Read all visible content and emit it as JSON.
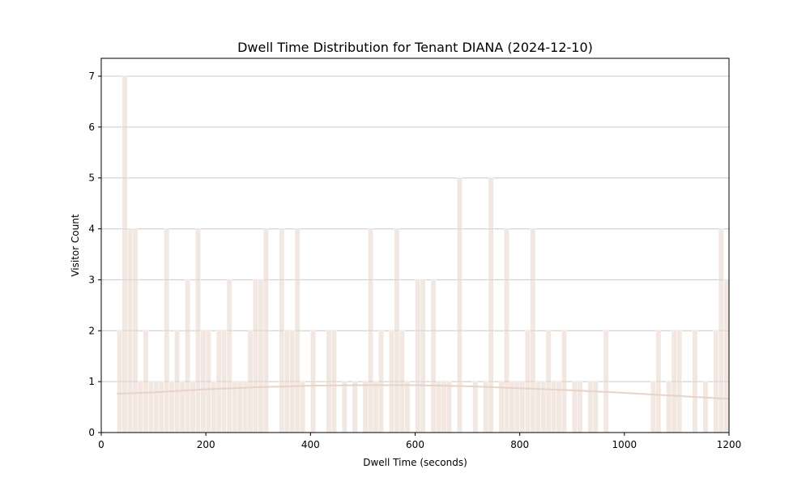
{
  "chart_data": {
    "type": "bar",
    "title": "Dwell Time Distribution for Tenant DIANA (2024-12-10)",
    "xlabel": "Dwell Time (seconds)",
    "ylabel": "Visitor Count",
    "xlim": [
      0,
      1200
    ],
    "ylim": [
      0,
      7.35
    ],
    "xticks": [
      0,
      200,
      400,
      600,
      800,
      1000,
      1200
    ],
    "yticks": [
      0,
      1,
      2,
      3,
      4,
      5,
      6,
      7
    ],
    "grid": "y",
    "bin_width": 10,
    "bar_color": "#e8d3c9",
    "curve_color": "#e8d3c9",
    "bins": [
      {
        "x": 30,
        "count": 2
      },
      {
        "x": 40,
        "count": 7
      },
      {
        "x": 50,
        "count": 4
      },
      {
        "x": 60,
        "count": 4
      },
      {
        "x": 70,
        "count": 1
      },
      {
        "x": 80,
        "count": 2
      },
      {
        "x": 90,
        "count": 1
      },
      {
        "x": 100,
        "count": 1
      },
      {
        "x": 110,
        "count": 1
      },
      {
        "x": 120,
        "count": 4
      },
      {
        "x": 130,
        "count": 1
      },
      {
        "x": 140,
        "count": 2
      },
      {
        "x": 150,
        "count": 1
      },
      {
        "x": 160,
        "count": 3
      },
      {
        "x": 170,
        "count": 1
      },
      {
        "x": 180,
        "count": 4
      },
      {
        "x": 190,
        "count": 2
      },
      {
        "x": 200,
        "count": 2
      },
      {
        "x": 210,
        "count": 1
      },
      {
        "x": 220,
        "count": 2
      },
      {
        "x": 230,
        "count": 2
      },
      {
        "x": 240,
        "count": 3
      },
      {
        "x": 250,
        "count": 1
      },
      {
        "x": 260,
        "count": 1
      },
      {
        "x": 270,
        "count": 1
      },
      {
        "x": 280,
        "count": 2
      },
      {
        "x": 290,
        "count": 3
      },
      {
        "x": 300,
        "count": 3
      },
      {
        "x": 310,
        "count": 4
      },
      {
        "x": 340,
        "count": 4
      },
      {
        "x": 350,
        "count": 2
      },
      {
        "x": 360,
        "count": 2
      },
      {
        "x": 370,
        "count": 4
      },
      {
        "x": 380,
        "count": 1
      },
      {
        "x": 400,
        "count": 2
      },
      {
        "x": 430,
        "count": 2
      },
      {
        "x": 440,
        "count": 2
      },
      {
        "x": 460,
        "count": 1
      },
      {
        "x": 480,
        "count": 1
      },
      {
        "x": 500,
        "count": 1
      },
      {
        "x": 510,
        "count": 4
      },
      {
        "x": 520,
        "count": 1
      },
      {
        "x": 530,
        "count": 2
      },
      {
        "x": 550,
        "count": 2
      },
      {
        "x": 560,
        "count": 4
      },
      {
        "x": 570,
        "count": 2
      },
      {
        "x": 580,
        "count": 1
      },
      {
        "x": 600,
        "count": 3
      },
      {
        "x": 610,
        "count": 3
      },
      {
        "x": 630,
        "count": 3
      },
      {
        "x": 640,
        "count": 1
      },
      {
        "x": 650,
        "count": 1
      },
      {
        "x": 660,
        "count": 1
      },
      {
        "x": 680,
        "count": 5
      },
      {
        "x": 710,
        "count": 1
      },
      {
        "x": 730,
        "count": 1
      },
      {
        "x": 740,
        "count": 5
      },
      {
        "x": 760,
        "count": 1
      },
      {
        "x": 770,
        "count": 4
      },
      {
        "x": 780,
        "count": 1
      },
      {
        "x": 790,
        "count": 1
      },
      {
        "x": 800,
        "count": 1
      },
      {
        "x": 810,
        "count": 2
      },
      {
        "x": 820,
        "count": 4
      },
      {
        "x": 830,
        "count": 1
      },
      {
        "x": 840,
        "count": 1
      },
      {
        "x": 850,
        "count": 2
      },
      {
        "x": 860,
        "count": 1
      },
      {
        "x": 870,
        "count": 1
      },
      {
        "x": 880,
        "count": 2
      },
      {
        "x": 900,
        "count": 1
      },
      {
        "x": 910,
        "count": 1
      },
      {
        "x": 930,
        "count": 1
      },
      {
        "x": 940,
        "count": 1
      },
      {
        "x": 960,
        "count": 2
      },
      {
        "x": 1050,
        "count": 1
      },
      {
        "x": 1060,
        "count": 2
      },
      {
        "x": 1080,
        "count": 1
      },
      {
        "x": 1090,
        "count": 2
      },
      {
        "x": 1100,
        "count": 2
      },
      {
        "x": 1130,
        "count": 2
      },
      {
        "x": 1150,
        "count": 1
      },
      {
        "x": 1170,
        "count": 2
      },
      {
        "x": 1180,
        "count": 4
      },
      {
        "x": 1190,
        "count": 3
      }
    ],
    "density_curve": {
      "x": [
        30,
        100,
        200,
        300,
        400,
        500,
        600,
        700,
        800,
        900,
        1000,
        1100,
        1200
      ],
      "y": [
        0.76,
        0.79,
        0.85,
        0.89,
        0.92,
        0.93,
        0.93,
        0.91,
        0.87,
        0.83,
        0.78,
        0.72,
        0.66
      ]
    }
  }
}
